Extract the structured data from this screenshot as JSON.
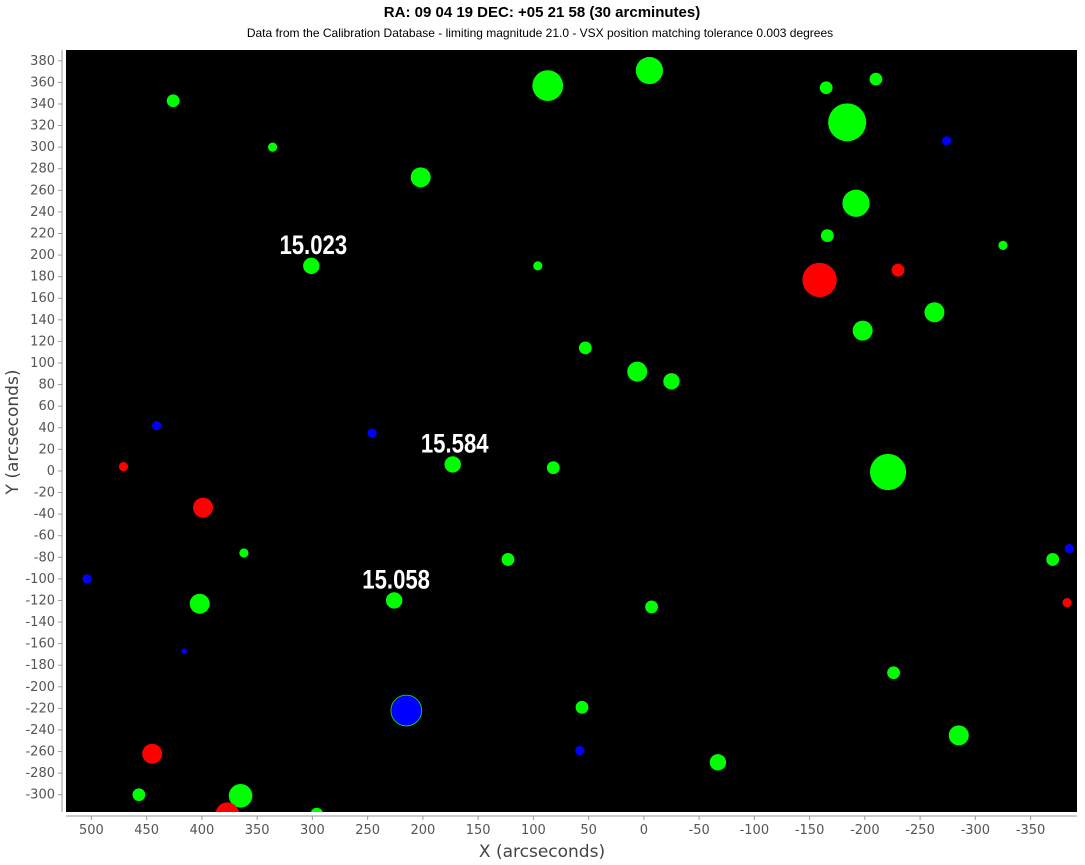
{
  "chart_data": {
    "type": "scatter",
    "title": "RA: 09 04 19  DEC: +05 21 58 (30 arcminutes)",
    "subtitle": "Data from the Calibration Database - limiting magnitude 21.0 - VSX position matching tolerance 0.003 degrees",
    "xlabel": "X (arcseconds)",
    "ylabel": "Y (arcseconds)",
    "xlim": [
      523,
      -392
    ],
    "ylim": [
      -316,
      390
    ],
    "x_reversed": true,
    "xticks": [
      500,
      450,
      400,
      350,
      300,
      250,
      200,
      150,
      100,
      50,
      0,
      -50,
      -100,
      -150,
      -200,
      -250,
      -300,
      -350
    ],
    "yticks": [
      380,
      360,
      340,
      320,
      300,
      280,
      260,
      240,
      220,
      200,
      180,
      160,
      140,
      120,
      100,
      80,
      60,
      40,
      20,
      0,
      -20,
      -40,
      -60,
      -80,
      -100,
      -120,
      -140,
      -160,
      -180,
      -200,
      -220,
      -240,
      -260,
      -280,
      -300
    ],
    "grid": false,
    "background": "#000000",
    "colors": {
      "green": "#00ff00",
      "red": "#ff0000",
      "blue": "#0000ff"
    },
    "points": [
      {
        "x": 426,
        "y": 343,
        "size": 3,
        "color": "green"
      },
      {
        "x": 336,
        "y": 300,
        "size": 2,
        "color": "green"
      },
      {
        "x": 202,
        "y": 272,
        "size": 5,
        "color": "green"
      },
      {
        "x": 301,
        "y": 190,
        "size": 4,
        "color": "green"
      },
      {
        "x": 87,
        "y": 357,
        "size": 8,
        "color": "green"
      },
      {
        "x": -5,
        "y": 371,
        "size": 7,
        "color": "green"
      },
      {
        "x": -165,
        "y": 355,
        "size": 3,
        "color": "green"
      },
      {
        "x": -210,
        "y": 363,
        "size": 3,
        "color": "green"
      },
      {
        "x": -184,
        "y": 323,
        "size": 10,
        "color": "green"
      },
      {
        "x": -274,
        "y": 306,
        "size": 2,
        "color": "blue"
      },
      {
        "x": -192,
        "y": 248,
        "size": 7,
        "color": "green"
      },
      {
        "x": -166,
        "y": 218,
        "size": 3,
        "color": "green"
      },
      {
        "x": -325,
        "y": 209,
        "size": 2,
        "color": "green"
      },
      {
        "x": -159,
        "y": 177,
        "size": 9,
        "color": "red"
      },
      {
        "x": -230,
        "y": 186,
        "size": 3,
        "color": "red"
      },
      {
        "x": 96,
        "y": 190,
        "size": 2,
        "color": "green"
      },
      {
        "x": -263,
        "y": 147,
        "size": 5,
        "color": "green"
      },
      {
        "x": -198,
        "y": 130,
        "size": 5,
        "color": "green"
      },
      {
        "x": 53,
        "y": 114,
        "size": 3,
        "color": "green"
      },
      {
        "x": 6,
        "y": 92,
        "size": 5,
        "color": "green"
      },
      {
        "x": -25,
        "y": 83,
        "size": 4,
        "color": "green"
      },
      {
        "x": 441,
        "y": 42,
        "size": 2,
        "color": "blue"
      },
      {
        "x": 246,
        "y": 35,
        "size": 2,
        "color": "blue"
      },
      {
        "x": 173,
        "y": 6,
        "size": 4,
        "color": "green"
      },
      {
        "x": 82,
        "y": 3,
        "size": 3,
        "color": "green"
      },
      {
        "x": -221,
        "y": -1,
        "size": 9.5,
        "color": "green"
      },
      {
        "x": 471,
        "y": 4,
        "size": 2,
        "color": "red"
      },
      {
        "x": 399,
        "y": -34,
        "size": 5,
        "color": "red"
      },
      {
        "x": 362,
        "y": -76,
        "size": 2,
        "color": "green"
      },
      {
        "x": 123,
        "y": -82,
        "size": 3,
        "color": "green"
      },
      {
        "x": 504,
        "y": -100,
        "size": 2,
        "color": "blue"
      },
      {
        "x": -370,
        "y": -82,
        "size": 3,
        "color": "green"
      },
      {
        "x": -385,
        "y": -72,
        "size": 2,
        "color": "blue"
      },
      {
        "x": -383,
        "y": -122,
        "size": 2,
        "color": "red"
      },
      {
        "x": 402,
        "y": -123,
        "size": 5,
        "color": "green"
      },
      {
        "x": 226,
        "y": -120,
        "size": 4,
        "color": "green"
      },
      {
        "x": -7,
        "y": -126,
        "size": 3,
        "color": "green"
      },
      {
        "x": 416,
        "y": -167,
        "size": 1,
        "color": "blue"
      },
      {
        "x": -226,
        "y": -187,
        "size": 3,
        "color": "green"
      },
      {
        "x": 215,
        "y": -222,
        "size": 8,
        "color": "blue",
        "outline": "green"
      },
      {
        "x": 56,
        "y": -219,
        "size": 3,
        "color": "green"
      },
      {
        "x": -285,
        "y": -245,
        "size": 5,
        "color": "green"
      },
      {
        "x": 58,
        "y": -259,
        "size": 2,
        "color": "blue"
      },
      {
        "x": 445,
        "y": -262,
        "size": 5,
        "color": "red"
      },
      {
        "x": -67,
        "y": -270,
        "size": 4,
        "color": "green"
      },
      {
        "x": 457,
        "y": -300,
        "size": 3,
        "color": "green"
      },
      {
        "x": 365,
        "y": -301,
        "size": 6,
        "color": "green"
      },
      {
        "x": 377,
        "y": -318,
        "size": 6,
        "color": "red"
      },
      {
        "x": 296,
        "y": -318,
        "size": 3,
        "color": "green"
      }
    ],
    "annotations": [
      {
        "text": "15.023",
        "x": 301,
        "y": 190
      },
      {
        "text": "15.584",
        "x": 173,
        "y": 6
      },
      {
        "text": "15.058",
        "x": 226,
        "y": -120
      }
    ]
  }
}
